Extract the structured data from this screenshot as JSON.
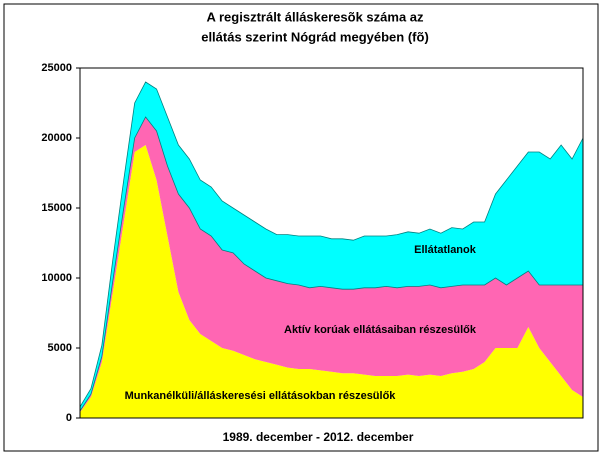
{
  "chart_data": {
    "type": "stacked_area",
    "title": [
      "A regisztrált álláskeresõk száma az",
      "ellátás szerint Nógrád megyében (fõ)"
    ],
    "xlabel": "1989. december - 2012. december",
    "categories": [
      null,
      null,
      null,
      null,
      null,
      null,
      null,
      null,
      null,
      null,
      null,
      null,
      null,
      null,
      null,
      null,
      null,
      null,
      null,
      null,
      null,
      null,
      null,
      null,
      null,
      null,
      null,
      null,
      null,
      null,
      null,
      null,
      null,
      null,
      null,
      null,
      null,
      null,
      null,
      null,
      null,
      null,
      null,
      null,
      null,
      null,
      null
    ],
    "ylim": [
      0,
      25000
    ],
    "yticks": [
      0,
      5000,
      10000,
      15000,
      20000,
      25000
    ],
    "series": [
      {
        "name": "Munkanélküli/álláskeresési ellátásokban részesülők",
        "color": "#ffff00",
        "values": [
          400,
          1500,
          4000,
          9000,
          14000,
          19000,
          19500,
          17000,
          13000,
          9000,
          7000,
          6000,
          5500,
          5000,
          4800,
          4500,
          4200,
          4000,
          3800,
          3600,
          3500,
          3500,
          3400,
          3300,
          3200,
          3200,
          3100,
          3000,
          3000,
          3000,
          3100,
          3000,
          3100,
          3000,
          3200,
          3300,
          3500,
          4000,
          5000,
          5000,
          5000,
          6500,
          5000,
          4000,
          3000,
          2000,
          1500
        ]
      },
      {
        "name": "Aktív korúak ellátásaiban részesülők",
        "color": "#ff66b3",
        "values": [
          100,
          200,
          400,
          800,
          1000,
          1000,
          2000,
          3500,
          5000,
          7000,
          8000,
          7500,
          7500,
          7000,
          7000,
          6500,
          6300,
          6000,
          6000,
          6000,
          6000,
          5800,
          6000,
          6000,
          6000,
          6000,
          6200,
          6300,
          6400,
          6300,
          6300,
          6400,
          6400,
          6300,
          6200,
          6200,
          6000,
          5500,
          5000,
          4500,
          5000,
          4000,
          4500,
          5500,
          6500,
          7500,
          8000
        ]
      },
      {
        "name": "Ellátatlanok",
        "color": "#00ffff",
        "values": [
          300,
          400,
          800,
          1500,
          2000,
          2500,
          2500,
          3000,
          3500,
          3500,
          3500,
          3500,
          3500,
          3500,
          3200,
          3500,
          3500,
          3500,
          3300,
          3500,
          3500,
          3700,
          3600,
          3500,
          3600,
          3500,
          3700,
          3700,
          3600,
          3800,
          3900,
          3800,
          4000,
          3900,
          4200,
          4000,
          4500,
          4500,
          6000,
          7500,
          8000,
          8500,
          9500,
          9000,
          10000,
          9000,
          10500
        ]
      }
    ]
  }
}
